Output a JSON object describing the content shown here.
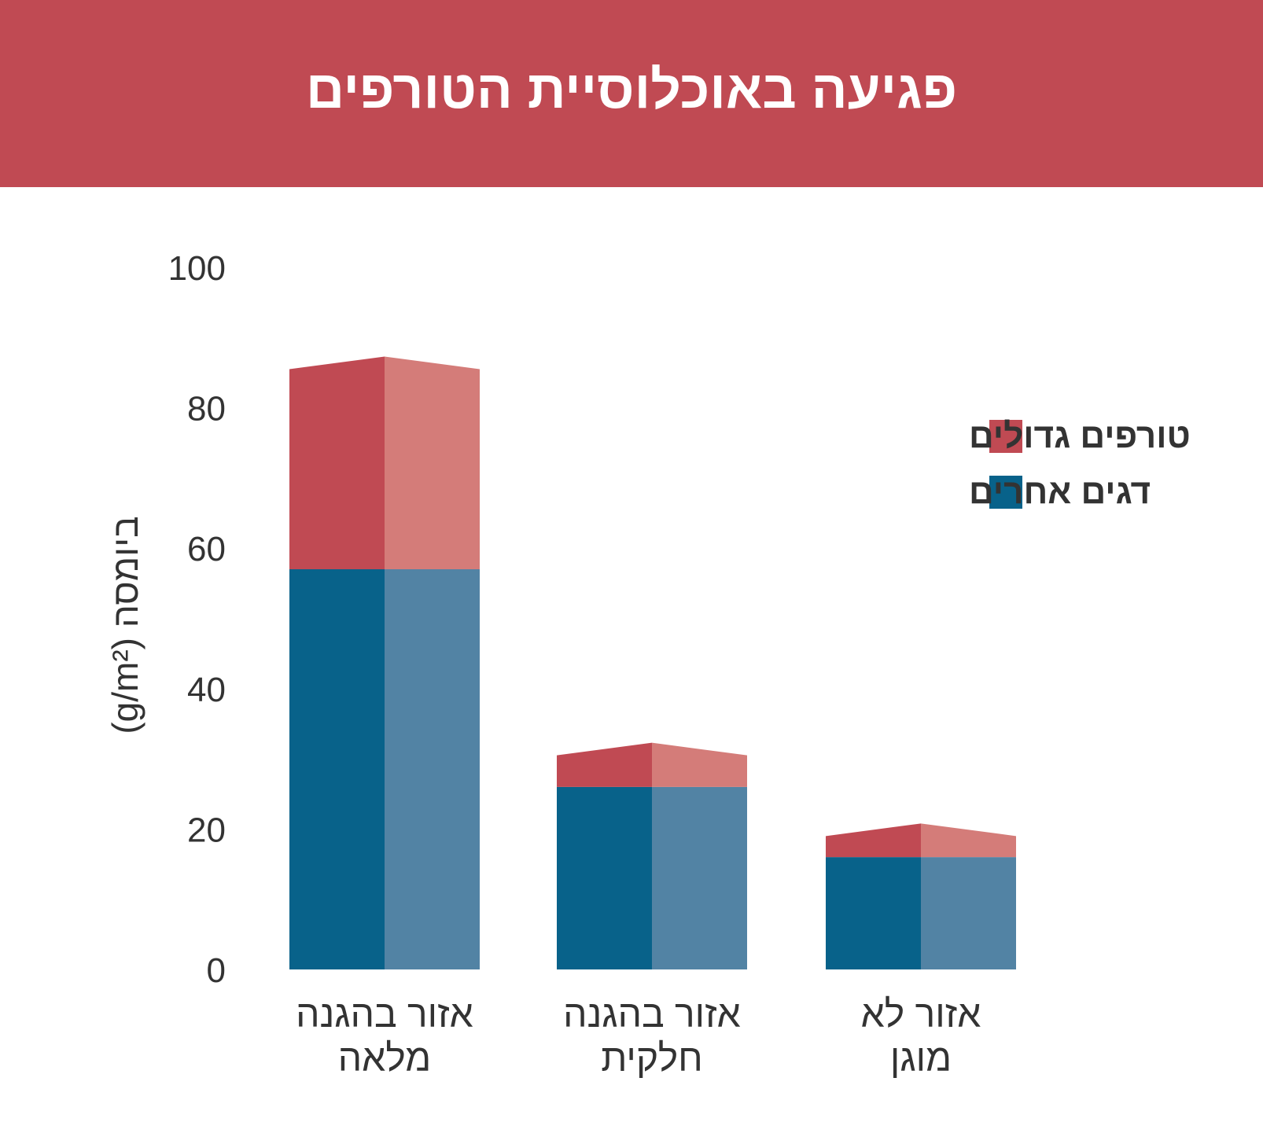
{
  "chart_data": {
    "type": "bar",
    "stacked": true,
    "title": "פגיעה באוכלוסיית הטורפים",
    "ylabel": "ביומסה (g/m²)",
    "ylim": [
      0,
      100
    ],
    "yticks": [
      "0",
      "20",
      "40",
      "60",
      "80",
      "100"
    ],
    "categories": [
      [
        "אזור בהגנה",
        "מלאה"
      ],
      [
        "אזור בהגנה",
        "חלקית"
      ],
      [
        "אזור לא",
        "מוגן"
      ]
    ],
    "series": [
      {
        "name": "דגים אחרים",
        "values": [
          57,
          26,
          16
        ]
      },
      {
        "name": "טורפים גדולים",
        "values": [
          28.5,
          4.5,
          3
        ]
      }
    ],
    "legend_order": [
      1,
      0
    ],
    "legend_position": "top-right",
    "grid": false
  },
  "colors": {
    "header": "#c04a53",
    "predators_dark": "#c04a53",
    "predators_light": "#d47c79",
    "others_dark": "#08628a",
    "others_light": "#5283a4"
  }
}
